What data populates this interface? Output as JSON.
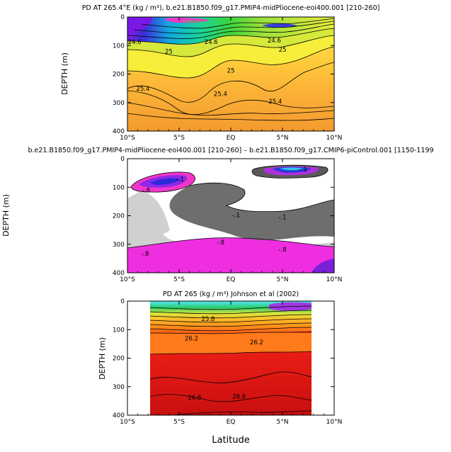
{
  "chart_data": [
    {
      "type": "heatmap",
      "title": "PD AT 265.4°E (kg / m³), b.e21.B1850.f09_g17.PMIP4-midPliocene-eoi400.001 [210-260]",
      "ylabel": "DEPTH (m)",
      "xlabel": "",
      "x_ticks": [
        "10°S",
        "5°S",
        "EQ",
        "5°N",
        "10°N"
      ],
      "y_ticks": [
        "0",
        "100",
        "200",
        "300",
        "400"
      ],
      "xlim": [
        -10,
        10
      ],
      "ylim": [
        400,
        0
      ],
      "contour_labels": [
        {
          "text": "24.6",
          "lat": -9.3,
          "depth": 95
        },
        {
          "text": "24.6",
          "lat": -1.9,
          "depth": 95
        },
        {
          "text": "24.6",
          "lat": 4.2,
          "depth": 90
        },
        {
          "text": "25",
          "lat": -6.0,
          "depth": 128
        },
        {
          "text": "25",
          "lat": 5.0,
          "depth": 122
        },
        {
          "text": "25",
          "lat": 0.0,
          "depth": 195
        },
        {
          "text": "25.4",
          "lat": -8.5,
          "depth": 258
        },
        {
          "text": "25.4",
          "lat": -1.0,
          "depth": 277
        },
        {
          "text": "25.4",
          "lat": 4.3,
          "depth": 303
        }
      ]
    },
    {
      "type": "heatmap",
      "title": "b.e21.B1850.f09_g17.PMIP4-midPliocene-eoi400.001 [210-260] – b.e21.B1850.f09_g17.CMIP6-piControl.001 [1150-1199",
      "ylabel": "DEPTH (m)",
      "xlabel": "",
      "x_ticks": [
        "10°S",
        "5°S",
        "EQ",
        "5°N",
        "10°N"
      ],
      "y_ticks": [
        "0",
        "100",
        "200",
        "300",
        "400"
      ],
      "xlim": [
        -10,
        10
      ],
      "ylim": [
        400,
        0
      ],
      "contour_labels": [
        {
          "text": "-.1",
          "lat": -4.9,
          "depth": 80
        },
        {
          "text": "-.8",
          "lat": -8.2,
          "depth": 118
        },
        {
          "text": "-.1",
          "lat": 7.0,
          "depth": 45
        },
        {
          "text": "-.1",
          "lat": 0.5,
          "depth": 205
        },
        {
          "text": "-.1",
          "lat": 5.0,
          "depth": 212
        },
        {
          "text": "-.8",
          "lat": -1.0,
          "depth": 300
        },
        {
          "text": "-.8",
          "lat": -8.3,
          "depth": 340
        },
        {
          "text": "-.8",
          "lat": 5.0,
          "depth": 325
        }
      ]
    },
    {
      "type": "heatmap",
      "title": "PD AT 265 (kg / m³) Johnson et al (2002)",
      "ylabel": "DEPTH (m)",
      "xlabel": "Latitude",
      "x_ticks": [
        "10°S",
        "5°S",
        "EQ",
        "5°N",
        "10°N"
      ],
      "y_ticks": [
        "0",
        "100",
        "200",
        "300",
        "400"
      ],
      "xlim": [
        -10,
        10
      ],
      "ylim": [
        400,
        0
      ],
      "data_lat_range": [
        -8,
        8
      ],
      "contour_labels": [
        {
          "text": "25.8",
          "lat": -2.2,
          "depth": 70
        },
        {
          "text": "26.2",
          "lat": -3.8,
          "depth": 138
        },
        {
          "text": "26.2",
          "lat": 2.5,
          "depth": 152
        },
        {
          "text": "26.6",
          "lat": -3.5,
          "depth": 345
        },
        {
          "text": "26.6",
          "lat": 0.8,
          "depth": 342
        }
      ]
    }
  ]
}
